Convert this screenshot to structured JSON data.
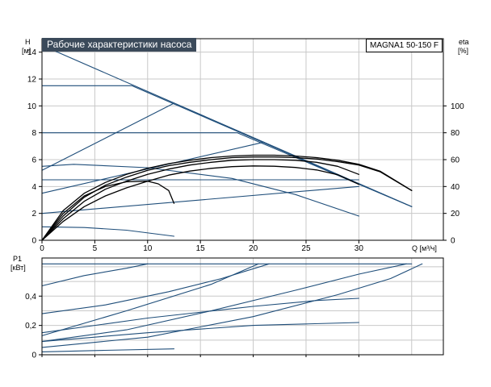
{
  "chart_data": [
    {
      "type": "line",
      "title": "Рабочие характеристики насоса",
      "model": "MAGNA1 50-150 F",
      "ylabel": "H",
      "yunit": "[м]",
      "y2label": "eta",
      "y2unit": "[%]",
      "xlabel": "Q [м³/ч]",
      "xlim": [
        0,
        38
      ],
      "ylim": [
        0,
        15
      ],
      "y2lim": [
        0,
        150
      ],
      "xticks": [
        "0",
        "5",
        "10",
        "15",
        "20",
        "25",
        "30"
      ],
      "xtick_values": [
        0,
        5,
        10,
        15,
        20,
        25,
        30
      ],
      "yticks": [
        "0",
        "2",
        "4",
        "6",
        "8",
        "10",
        "12",
        "14"
      ],
      "ytick_values": [
        0,
        2,
        4,
        6,
        8,
        10,
        12,
        14
      ],
      "y2ticks": [
        "0",
        "20",
        "40",
        "60",
        "80",
        "100"
      ],
      "y2tick_values": [
        0,
        20,
        40,
        60,
        80,
        100
      ],
      "grid": true,
      "colors": {
        "curve": "#1f4e7a",
        "efficiency": "#000000"
      },
      "series": [
        {
          "kind": "pump",
          "points": [
            [
              0,
              14.5
            ],
            [
              35,
              2.5
            ]
          ]
        },
        {
          "kind": "pump",
          "points": [
            [
              0,
              11.5
            ],
            [
              8.5,
              11.5
            ],
            [
              35,
              2.5
            ]
          ]
        },
        {
          "kind": "pump",
          "points": [
            [
              0,
              8
            ],
            [
              18.5,
              8
            ],
            [
              35,
              2.5
            ]
          ]
        },
        {
          "kind": "pump",
          "points": [
            [
              0,
              5.2
            ],
            [
              12.5,
              10.2
            ]
          ]
        },
        {
          "kind": "pump",
          "points": [
            [
              0,
              4.5
            ],
            [
              30,
              4.5
            ]
          ]
        },
        {
          "kind": "pump",
          "points": [
            [
              0,
              3.5
            ],
            [
              21,
              7.3
            ]
          ]
        },
        {
          "kind": "pump",
          "points": [
            [
              0,
              2
            ],
            [
              30,
              4
            ]
          ]
        },
        {
          "kind": "pump",
          "points": [
            [
              0,
              5.5
            ],
            [
              3,
              5.65
            ],
            [
              10,
              5.4
            ],
            [
              18,
              4.6
            ],
            [
              24,
              3.4
            ],
            [
              30,
              1.8
            ]
          ]
        },
        {
          "kind": "pump",
          "points": [
            [
              0,
              1
            ],
            [
              4,
              0.95
            ],
            [
              8,
              0.75
            ],
            [
              12.5,
              0.3
            ]
          ]
        },
        {
          "kind": "efficiency",
          "points": [
            [
              0,
              0
            ],
            [
              2,
              14
            ],
            [
              4,
              25
            ],
            [
              6,
              33
            ],
            [
              8,
              39
            ],
            [
              10,
              44
            ],
            [
              12,
              48.5
            ],
            [
              14,
              51.5
            ],
            [
              16,
              53.5
            ],
            [
              18,
              54.8
            ],
            [
              20,
              55.3
            ],
            [
              22,
              55.1
            ],
            [
              24,
              54.2
            ],
            [
              26,
              52.3
            ],
            [
              28,
              48.8
            ],
            [
              30,
              41.6
            ]
          ]
        },
        {
          "kind": "efficiency",
          "points": [
            [
              0,
              0
            ],
            [
              2,
              16
            ],
            [
              4,
              29
            ],
            [
              6,
              38
            ],
            [
              8,
              44
            ],
            [
              10,
              49
            ],
            [
              12,
              53
            ],
            [
              14,
              56
            ],
            [
              16,
              58
            ],
            [
              18,
              59.5
            ],
            [
              20,
              60
            ],
            [
              22,
              60
            ],
            [
              24,
              59.5
            ],
            [
              26,
              58
            ],
            [
              28,
              55
            ],
            [
              30,
              49
            ]
          ]
        },
        {
          "kind": "efficiency",
          "points": [
            [
              0,
              0
            ],
            [
              2,
              18
            ],
            [
              4,
              32
            ],
            [
              6,
              41
            ],
            [
              8,
              47
            ],
            [
              10,
              52
            ],
            [
              12,
              55.5
            ],
            [
              14,
              58
            ],
            [
              16,
              60
            ],
            [
              18,
              61.5
            ],
            [
              20,
              62
            ],
            [
              22,
              62
            ],
            [
              24,
              61.5
            ],
            [
              26,
              60.5
            ],
            [
              28,
              58.5
            ],
            [
              30,
              56
            ],
            [
              32,
              51
            ],
            [
              35,
              37
            ]
          ]
        },
        {
          "kind": "efficiency",
          "points": [
            [
              0,
              0
            ],
            [
              2,
              22
            ],
            [
              4,
              35
            ],
            [
              6,
              43
            ],
            [
              8,
              49
            ],
            [
              10,
              53.5
            ],
            [
              12,
              57
            ],
            [
              14,
              59.5
            ],
            [
              16,
              61.5
            ],
            [
              18,
              62.7
            ],
            [
              20,
              63.3
            ],
            [
              22,
              63.3
            ],
            [
              24,
              62.7
            ],
            [
              26,
              61.5
            ],
            [
              28,
              59.5
            ],
            [
              30,
              56.5
            ],
            [
              32,
              51.5
            ],
            [
              35,
              37
            ]
          ]
        },
        {
          "kind": "efficiency",
          "points": [
            [
              0,
              0
            ],
            [
              2,
              20
            ],
            [
              4,
              33
            ],
            [
              6,
              40
            ],
            [
              8,
              43.5
            ],
            [
              10,
              44
            ],
            [
              11,
              42
            ],
            [
              12,
              37
            ],
            [
              12.5,
              27.5
            ]
          ]
        }
      ]
    },
    {
      "type": "line",
      "ylabel": "P1",
      "yunit": "[кВт]",
      "xlim": [
        0,
        38
      ],
      "ylim": [
        0,
        0.66
      ],
      "yticks": [
        "0",
        "0,2",
        "0,4"
      ],
      "ytick_values": [
        0,
        0.2,
        0.4
      ],
      "extra_gridlines": [
        0.1,
        0.3,
        0.5,
        0.6
      ],
      "grid": true,
      "series": [
        {
          "points": [
            [
              0,
              0.62
            ],
            [
              35,
              0.62
            ]
          ]
        },
        {
          "points": [
            [
              0,
              0.47
            ],
            [
              4,
              0.54
            ],
            [
              8,
              0.59
            ],
            [
              10,
              0.62
            ]
          ]
        },
        {
          "points": [
            [
              0,
              0.28
            ],
            [
              6,
              0.34
            ],
            [
              12,
              0.43
            ],
            [
              17,
              0.52
            ],
            [
              21.5,
              0.62
            ]
          ]
        },
        {
          "points": [
            [
              0,
              0.13
            ],
            [
              8,
              0.3
            ],
            [
              16,
              0.48
            ],
            [
              20.5,
              0.62
            ]
          ]
        },
        {
          "points": [
            [
              0,
              0.09
            ],
            [
              8,
              0.17
            ],
            [
              16,
              0.3
            ],
            [
              24,
              0.44
            ],
            [
              30,
              0.55
            ],
            [
              34.5,
              0.62
            ]
          ]
        },
        {
          "points": [
            [
              0,
              0.05
            ],
            [
              10,
              0.12
            ],
            [
              20,
              0.26
            ],
            [
              28,
              0.41
            ],
            [
              33,
              0.52
            ],
            [
              36,
              0.62
            ]
          ]
        },
        {
          "points": [
            [
              0,
              0.15
            ],
            [
              10,
              0.25
            ],
            [
              20,
              0.33
            ],
            [
              26,
              0.37
            ],
            [
              30,
              0.385
            ]
          ]
        },
        {
          "points": [
            [
              0,
              0.09
            ],
            [
              10,
              0.15
            ],
            [
              20,
              0.2
            ],
            [
              25,
              0.21
            ],
            [
              30,
              0.22
            ]
          ]
        },
        {
          "points": [
            [
              0,
              0.02
            ],
            [
              6,
              0.03
            ],
            [
              12.5,
              0.04
            ]
          ]
        }
      ]
    }
  ]
}
